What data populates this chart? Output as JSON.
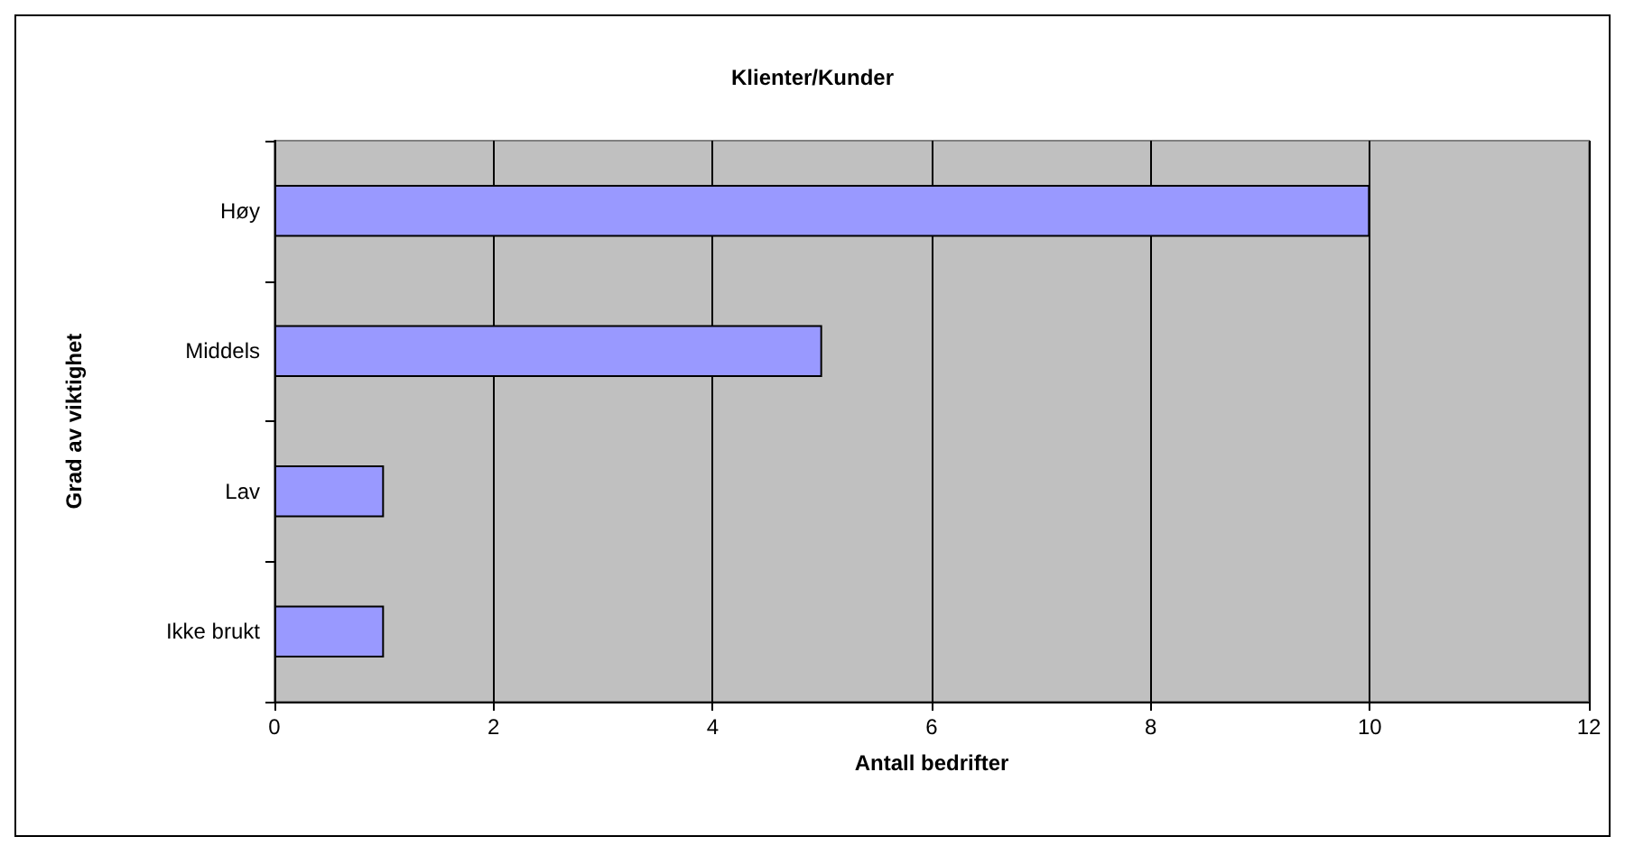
{
  "chart_data": {
    "type": "bar",
    "orientation": "horizontal",
    "title": "Klienter/Kunder",
    "xlabel": "Antall bedrifter",
    "ylabel": "Grad av viktighet",
    "categories": [
      "Høy",
      "Middels",
      "Lav",
      "Ikke brukt"
    ],
    "values": [
      10,
      5,
      1,
      1
    ],
    "color": "#9999ff",
    "xlim": [
      0,
      12
    ],
    "xticks": [
      0,
      2,
      4,
      6,
      8,
      10,
      12
    ],
    "grid": "x"
  }
}
